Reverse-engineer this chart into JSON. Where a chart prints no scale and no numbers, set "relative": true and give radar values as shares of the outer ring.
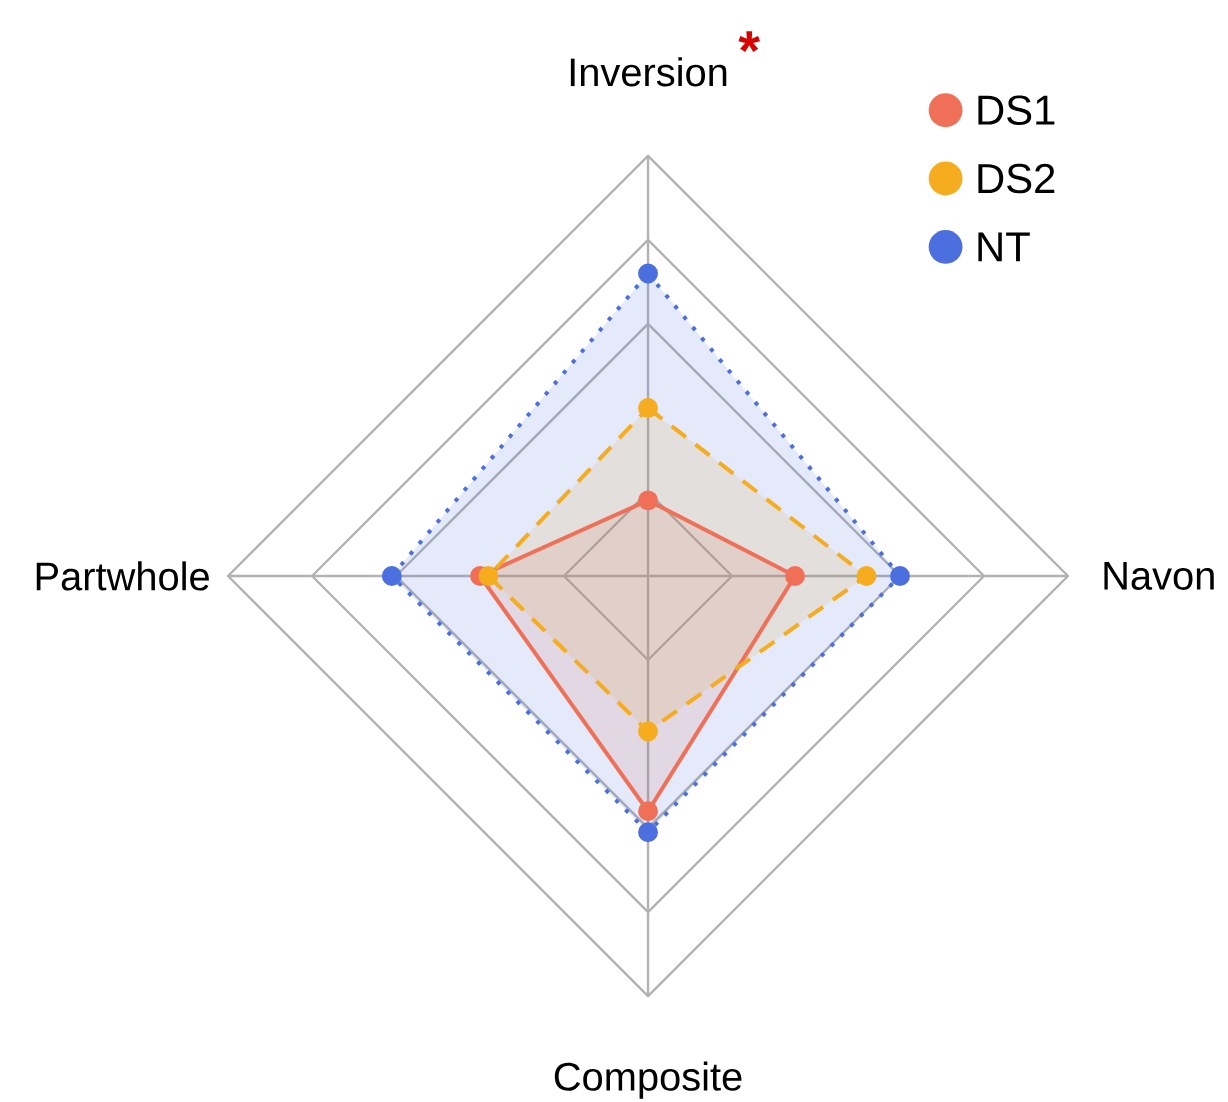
{
  "chart_data": {
    "type": "radar",
    "relative": true,
    "categories": [
      "Inversion",
      "Navon",
      "Composite",
      "Partwhole"
    ],
    "series": [
      {
        "name": "DS1",
        "color": "#f07057",
        "line_style": "solid",
        "values": [
          0.18,
          0.35,
          0.56,
          0.4
        ]
      },
      {
        "name": "DS2",
        "color": "#f5ac1e",
        "line_style": "dashed",
        "values": [
          0.4,
          0.52,
          0.37,
          0.38
        ]
      },
      {
        "name": "NT",
        "color": "#4c6fe0",
        "line_style": "dotted",
        "values": [
          0.72,
          0.6,
          0.61,
          0.61
        ]
      }
    ],
    "annotations": [
      {
        "text": "*",
        "x": "Inversion"
      }
    ],
    "marker": "circle",
    "grid": true,
    "legend": "top right"
  }
}
